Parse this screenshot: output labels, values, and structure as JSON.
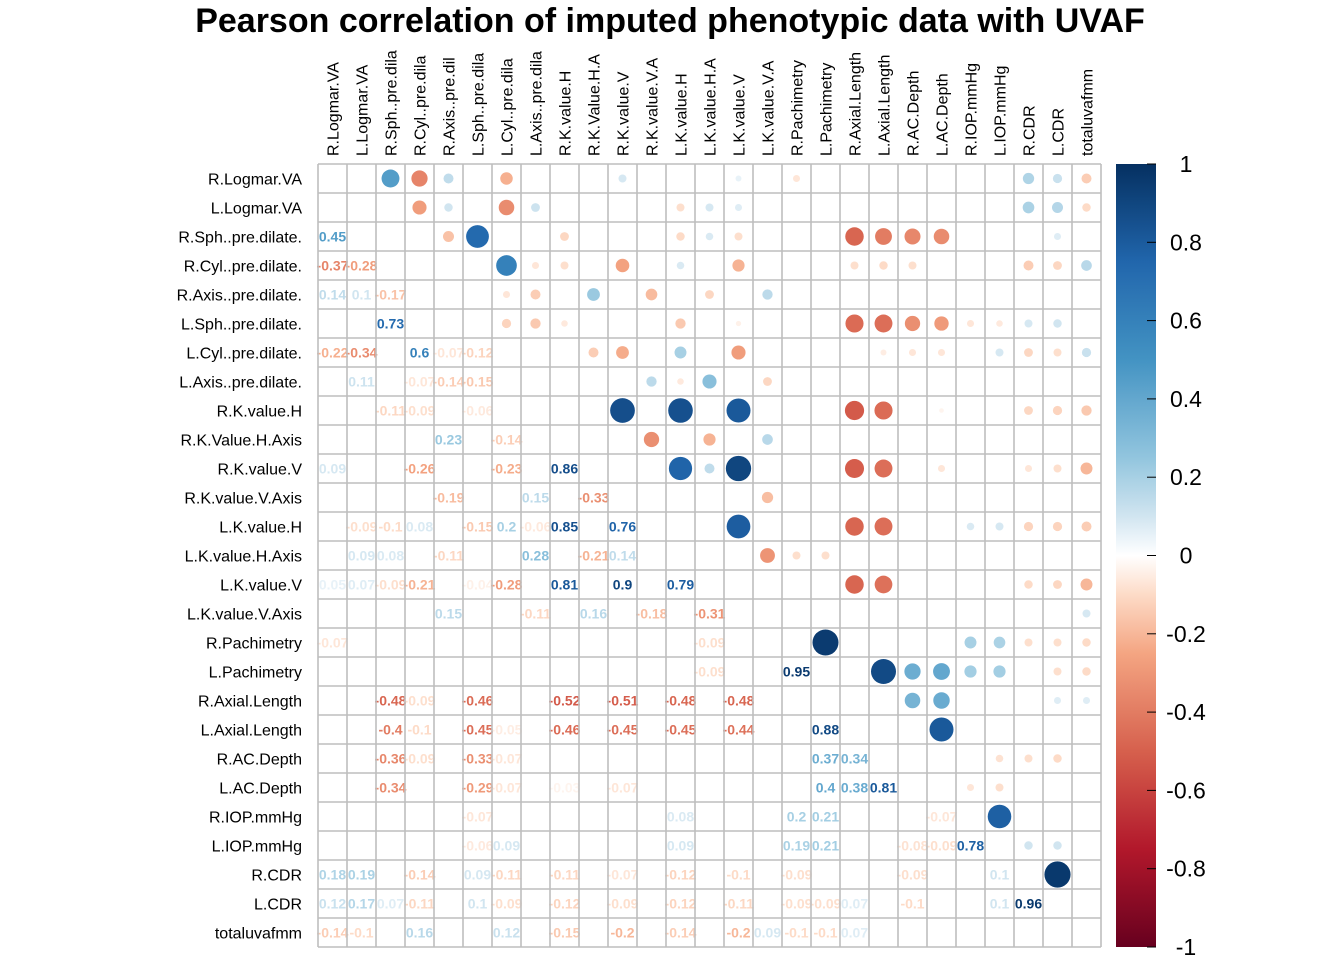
{
  "chart_data": {
    "type": "heatmap",
    "title": "Pearson correlation of imputed phenotypic data with UVAF",
    "variables": [
      "R.Logmar.VA",
      "L.Logmar.VA",
      "R.Sph..pre.dilate.",
      "R.Cyl..pre.dilate.",
      "R.Axis..pre.dilate.",
      "L.Sph..pre.dilate.",
      "L.Cyl..pre.dilate.",
      "L.Axis..pre.dilate.",
      "R.K.value.H",
      "R.K.Value.H.Axis",
      "R.K.value.V",
      "R.K.value.V.Axis",
      "L.K.value.H",
      "L.K.value.H.Axis",
      "L.K.value.V",
      "L.K.value.V.Axis",
      "R.Pachimetry",
      "L.Pachimetry",
      "R.Axial.Length",
      "L.Axial.Length",
      "R.AC.Depth",
      "L.AC.Depth",
      "R.IOP.mmHg",
      "L.IOP.mmHg",
      "R.CDR",
      "L.CDR",
      "totaluvafmm"
    ],
    "column_labels": [
      "R.Logmar.VA",
      "L.Logmar.VA",
      "R.Sph..pre.dila",
      "R.Cyl..pre.dila",
      "R.Axis..pre.dil",
      "L.Sph..pre.dila",
      "L.Cyl..pre.dila",
      "L.Axis..pre.dila",
      "R.K.value.H",
      "R.K.Value.H.A",
      "R.K.value.V",
      "R.K.value.V.A",
      "L.K.value.H",
      "L.K.value.H.A",
      "L.K.value.V",
      "L.K.value.V.A",
      "R.Pachimetry",
      "L.Pachimetry",
      "R.Axial.Length",
      "L.Axial.Length",
      "R.AC.Depth",
      "L.AC.Depth",
      "R.IOP.mmHg",
      "L.IOP.mmHg",
      "R.CDR",
      "L.CDR",
      "totaluvafmm"
    ],
    "colorbar": {
      "ticks": [
        "1",
        "0.8",
        "0.6",
        "0.4",
        "0.2",
        "0",
        "-0.2",
        "-0.4",
        "-0.6",
        "-0.8",
        "-1"
      ],
      "range": [
        -1,
        1
      ]
    },
    "colors": {
      "neg": "#67001f",
      "mid_neg": "#d6604d",
      "zero": "#ffffff",
      "mid_pos": "#4393c3",
      "pos": "#053061",
      "grid": "#bebebe"
    },
    "correlations": [
      [
        1,
        0,
        0.45
      ],
      [
        2,
        0,
        -0.37
      ],
      [
        2,
        1,
        -0.28
      ],
      [
        3,
        0,
        0.14
      ],
      [
        3,
        1,
        0.1
      ],
      [
        3,
        2,
        -0.17
      ],
      [
        4,
        2,
        0.73
      ],
      [
        5,
        0,
        -0.22
      ],
      [
        5,
        1,
        -0.34
      ],
      [
        5,
        3,
        0.6
      ],
      [
        5,
        4,
        -0.07
      ],
      [
        5,
        5,
        -0.12
      ],
      [
        6,
        1,
        0.11
      ],
      [
        6,
        3,
        -0.07
      ],
      [
        6,
        4,
        -0.14
      ],
      [
        6,
        5,
        -0.15
      ],
      [
        7,
        2,
        -0.11
      ],
      [
        7,
        3,
        -0.09
      ],
      [
        7,
        5,
        -0.06
      ],
      [
        8,
        4,
        0.23
      ],
      [
        8,
        6,
        -0.14
      ],
      [
        9,
        0,
        0.09
      ],
      [
        9,
        3,
        -0.26
      ],
      [
        9,
        6,
        -0.23
      ],
      [
        9,
        8,
        0.86
      ],
      [
        10,
        4,
        -0.19
      ],
      [
        10,
        7,
        0.15
      ],
      [
        10,
        9,
        -0.33
      ],
      [
        11,
        1,
        -0.09
      ],
      [
        11,
        2,
        -0.1
      ],
      [
        11,
        3,
        0.08
      ],
      [
        11,
        5,
        -0.15
      ],
      [
        11,
        6,
        0.2
      ],
      [
        11,
        7,
        -0.06
      ],
      [
        11,
        8,
        0.85
      ],
      [
        11,
        10,
        0.76
      ],
      [
        12,
        1,
        0.09
      ],
      [
        12,
        2,
        0.08
      ],
      [
        12,
        4,
        -0.11
      ],
      [
        12,
        7,
        0.28
      ],
      [
        12,
        9,
        -0.21
      ],
      [
        12,
        10,
        0.14
      ],
      [
        13,
        0,
        0.05
      ],
      [
        13,
        1,
        0.07
      ],
      [
        13,
        2,
        -0.09
      ],
      [
        13,
        3,
        -0.21
      ],
      [
        13,
        5,
        -0.04
      ],
      [
        13,
        6,
        -0.28
      ],
      [
        13,
        8,
        0.81
      ],
      [
        13,
        10,
        0.9
      ],
      [
        13,
        12,
        0.79
      ],
      [
        14,
        4,
        0.15
      ],
      [
        14,
        7,
        -0.11
      ],
      [
        14,
        9,
        0.16
      ],
      [
        14,
        11,
        -0.18
      ],
      [
        14,
        13,
        -0.31
      ],
      [
        15,
        0,
        -0.07
      ],
      [
        15,
        13,
        -0.09
      ],
      [
        16,
        13,
        -0.09
      ],
      [
        16,
        16,
        0.95
      ],
      [
        17,
        2,
        -0.48
      ],
      [
        17,
        3,
        -0.09
      ],
      [
        17,
        5,
        -0.46
      ],
      [
        17,
        8,
        -0.52
      ],
      [
        17,
        10,
        -0.51
      ],
      [
        17,
        12,
        -0.48
      ],
      [
        17,
        14,
        -0.48
      ],
      [
        18,
        2,
        -0.4
      ],
      [
        18,
        3,
        -0.1
      ],
      [
        18,
        5,
        -0.45
      ],
      [
        18,
        6,
        -0.05
      ],
      [
        18,
        8,
        -0.46
      ],
      [
        18,
        10,
        -0.45
      ],
      [
        18,
        12,
        -0.45
      ],
      [
        18,
        14,
        -0.44
      ],
      [
        18,
        17,
        0.88
      ],
      [
        19,
        2,
        -0.36
      ],
      [
        19,
        3,
        -0.09
      ],
      [
        19,
        5,
        -0.33
      ],
      [
        19,
        6,
        -0.07
      ],
      [
        19,
        17,
        0.37
      ],
      [
        19,
        18,
        0.34
      ],
      [
        20,
        2,
        -0.34
      ],
      [
        20,
        5,
        -0.29
      ],
      [
        20,
        6,
        -0.07
      ],
      [
        20,
        8,
        -0.03
      ],
      [
        20,
        10,
        -0.07
      ],
      [
        20,
        17,
        0.4
      ],
      [
        20,
        18,
        0.38
      ],
      [
        20,
        19,
        0.81
      ],
      [
        21,
        5,
        -0.07
      ],
      [
        21,
        12,
        0.08
      ],
      [
        21,
        16,
        0.2
      ],
      [
        21,
        17,
        0.21
      ],
      [
        21,
        21,
        -0.07
      ],
      [
        22,
        5,
        -0.06
      ],
      [
        22,
        6,
        0.09
      ],
      [
        22,
        12,
        0.09
      ],
      [
        22,
        16,
        0.19
      ],
      [
        22,
        17,
        0.21
      ],
      [
        22,
        20,
        -0.08
      ],
      [
        22,
        21,
        -0.09
      ],
      [
        22,
        22,
        0.78
      ],
      [
        23,
        0,
        0.18
      ],
      [
        23,
        1,
        0.19
      ],
      [
        23,
        3,
        -0.14
      ],
      [
        23,
        5,
        0.09
      ],
      [
        23,
        6,
        -0.11
      ],
      [
        23,
        8,
        -0.11
      ],
      [
        23,
        10,
        -0.07
      ],
      [
        23,
        12,
        -0.12
      ],
      [
        23,
        14,
        -0.1
      ],
      [
        23,
        16,
        -0.09
      ],
      [
        23,
        20,
        -0.09
      ],
      [
        23,
        23,
        0.1
      ],
      [
        24,
        0,
        0.12
      ],
      [
        24,
        1,
        0.17
      ],
      [
        24,
        2,
        0.07
      ],
      [
        24,
        3,
        -0.11
      ],
      [
        24,
        5,
        0.1
      ],
      [
        24,
        6,
        -0.09
      ],
      [
        24,
        8,
        -0.12
      ],
      [
        24,
        10,
        -0.09
      ],
      [
        24,
        12,
        -0.12
      ],
      [
        24,
        14,
        -0.11
      ],
      [
        24,
        16,
        -0.09
      ],
      [
        24,
        17,
        -0.09
      ],
      [
        24,
        18,
        0.07
      ],
      [
        24,
        20,
        -0.1
      ],
      [
        24,
        23,
        0.1
      ],
      [
        24,
        24,
        0.96
      ],
      [
        25,
        0,
        -0.14
      ],
      [
        25,
        1,
        -0.1
      ],
      [
        25,
        3,
        0.16
      ],
      [
        25,
        6,
        0.12
      ],
      [
        25,
        8,
        -0.15
      ],
      [
        25,
        10,
        -0.2
      ],
      [
        25,
        12,
        -0.14
      ],
      [
        25,
        14,
        -0.2
      ],
      [
        25,
        15,
        0.09
      ],
      [
        25,
        16,
        -0.1
      ],
      [
        25,
        17,
        -0.1
      ],
      [
        25,
        18,
        0.07
      ]
    ]
  }
}
